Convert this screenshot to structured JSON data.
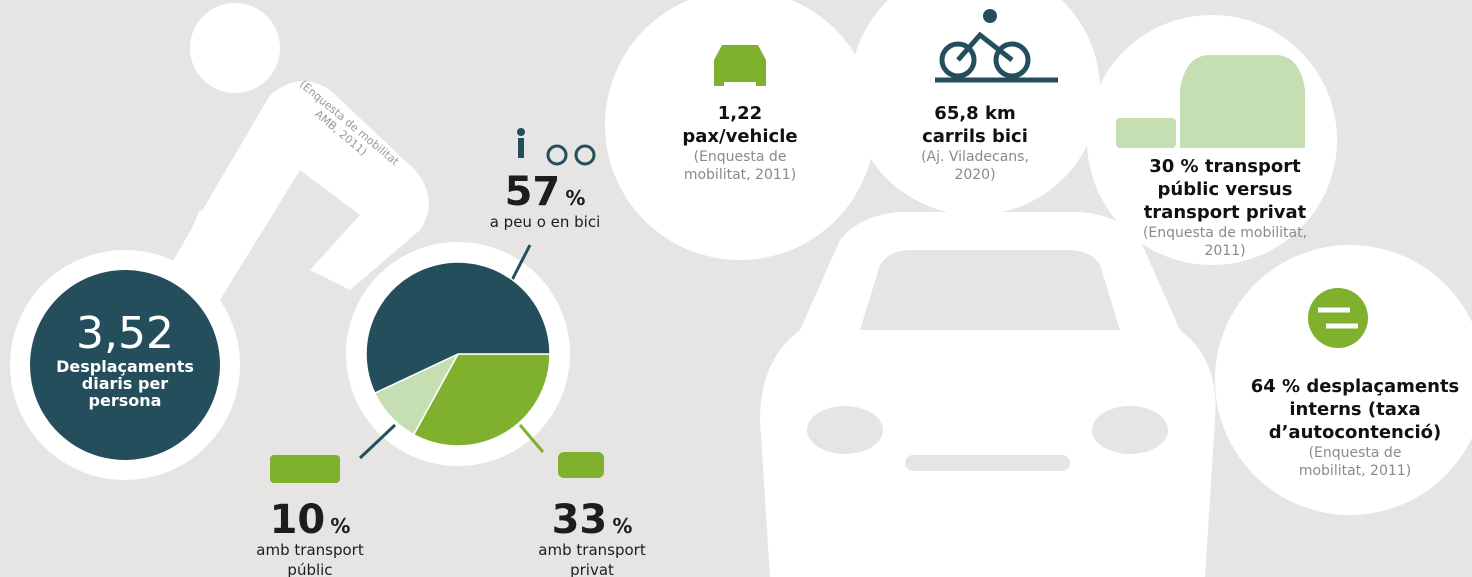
{
  "chart_data": {
    "type": "pie",
    "categories": [
      "amb transport privat",
      "amb transport públic",
      "a peu o en bici"
    ],
    "values": [
      33,
      10,
      57
    ],
    "colors": [
      "#7fb02e",
      "#c6dfb2",
      "#244e5c"
    ],
    "unit": "%"
  },
  "main_stat": {
    "value": "3,52",
    "label": "Desplaçaments diaris per persona",
    "source": "(Enquesta de mobilitat AMB, 2011)"
  },
  "stats": [
    {
      "value": "1,22 pax/vehicle",
      "source": "(Enquesta de mobilitat, 2011)"
    },
    {
      "value": "65,8 km carrils bici",
      "source": "(Aj. Viladecans, 2020)"
    },
    {
      "value": "30 % transport públic versus transport privat",
      "source": "(Enquesta de mobilitat, 2011)"
    },
    {
      "value": "64 % desplaçaments interns (taxa d’autocontenció)",
      "source": "(Enquesta de mobilitat, 2011)"
    }
  ]
}
